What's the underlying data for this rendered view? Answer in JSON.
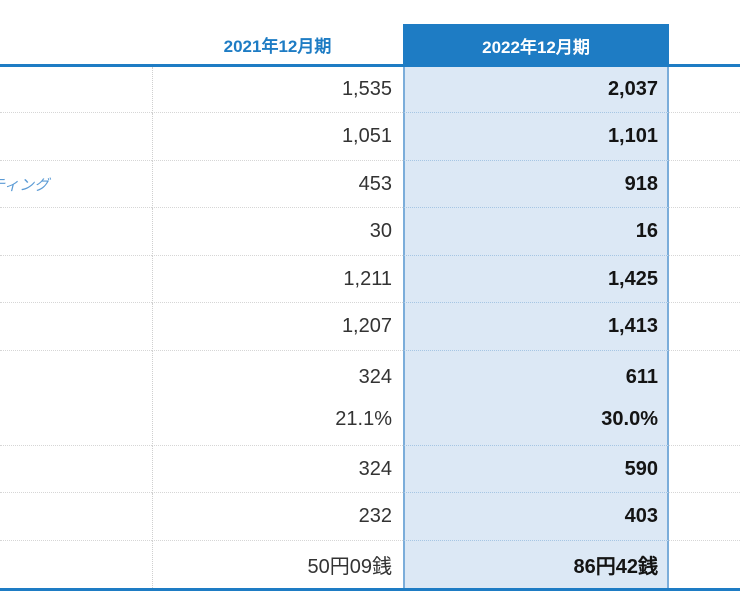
{
  "table": {
    "columns": [
      {
        "label": "2021年12月期"
      },
      {
        "label": "2022年12月期"
      }
    ],
    "rows": [
      {
        "y2021": "1,535",
        "y2022": "2,037"
      },
      {
        "y2021": "1,051",
        "y2022": "1,101"
      },
      {
        "label": "ティング",
        "y2021": "453",
        "y2022": "918"
      },
      {
        "y2021": "30",
        "y2022": "16"
      },
      {
        "y2021": "1,211",
        "y2022": "1,425"
      },
      {
        "y2021": "1,207",
        "y2022": "1,413"
      },
      {
        "y2021": "324",
        "y2021_sub": "21.1%",
        "y2022": "611",
        "y2022_sub": "30.0%"
      },
      {
        "y2021": "324",
        "y2022": "590"
      },
      {
        "y2021": "232",
        "y2022": "403"
      },
      {
        "y2021": "50円09銭",
        "y2022": "86円42銭"
      }
    ]
  },
  "colors": {
    "accent_blue": "#1e7cc4",
    "highlight_column_bg": "#dce8f5",
    "highlight_column_border": "#7badda",
    "row_separator": "#d6d6d6",
    "row_separator_highlight": "#a6c6e4",
    "label_text": "#5b9bd5",
    "value_text": "#333333",
    "value_text_bold": "#141414"
  }
}
